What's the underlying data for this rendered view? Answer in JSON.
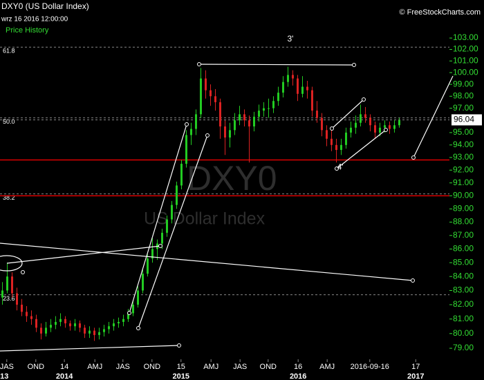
{
  "chart_data": {
    "type": "candlestick",
    "title": "DXY0 (US Dollar Index)",
    "subtitle": "wrz 16 2016 12:00:00",
    "legend_label": "Price History",
    "copyright": "© FreeStockCharts.com",
    "watermark": [
      "DXY0",
      "US Dollar Index"
    ],
    "annotations": [
      {
        "text": "3'",
        "x": 59.5,
        "y": 102.9
      },
      {
        "text": "4'",
        "x": 69.8,
        "y": 92.2
      }
    ],
    "log_scale": true,
    "up_color": "#22cc22",
    "down_color": "#dd2222",
    "ylim": [
      78.26,
      103.92
    ],
    "xlim": [
      -0.5,
      92.36
    ],
    "yticks": [
      {
        "value": 79,
        "label": "79.00"
      },
      {
        "value": 80,
        "label": "80.00"
      },
      {
        "value": 81,
        "label": "81.00"
      },
      {
        "value": 82,
        "label": "82.00"
      },
      {
        "value": 83,
        "label": "83.00"
      },
      {
        "value": 84,
        "label": "84.00"
      },
      {
        "value": 85,
        "label": "85.00"
      },
      {
        "value": 86,
        "label": "86.00"
      },
      {
        "value": 87,
        "label": "87.00"
      },
      {
        "value": 88,
        "label": "88.00"
      },
      {
        "value": 89,
        "label": "89.00"
      },
      {
        "value": 90,
        "label": "90.00"
      },
      {
        "value": 91,
        "label": "91.00"
      },
      {
        "value": 92,
        "label": "92.00"
      },
      {
        "value": 93,
        "label": "93.00"
      },
      {
        "value": 94,
        "label": "94.00"
      },
      {
        "value": 95,
        "label": "95.00"
      },
      {
        "value": 97,
        "label": "97.00"
      },
      {
        "value": 98,
        "label": "98.00"
      },
      {
        "value": 99,
        "label": "99.00"
      },
      {
        "value": 100,
        "label": "100.00"
      },
      {
        "value": 101,
        "label": "101.00"
      },
      {
        "value": 102,
        "label": "102.00"
      },
      {
        "value": 103,
        "label": "103.00"
      }
    ],
    "last_price": {
      "value": 96.04,
      "label": "96.04"
    },
    "xticks": [
      {
        "value": 0.9,
        "label": "JAS"
      },
      {
        "value": 6.9,
        "label": "OND"
      },
      {
        "value": 12.8,
        "label": "14"
      },
      {
        "value": 19.1,
        "label": "AMJ"
      },
      {
        "value": 24.9,
        "label": "JAS"
      },
      {
        "value": 30.9,
        "label": "OND"
      },
      {
        "value": 36.9,
        "label": "15"
      },
      {
        "value": 43.1,
        "label": "AMJ"
      },
      {
        "value": 49.1,
        "label": "JAS"
      },
      {
        "value": 54.9,
        "label": "OND"
      },
      {
        "value": 61.1,
        "label": "16"
      },
      {
        "value": 67.1,
        "label": "AMJ"
      },
      {
        "value": 75.9,
        "label": "2016-09-16"
      },
      {
        "value": 85.4,
        "label": "17"
      }
    ],
    "year_ticks": [
      {
        "value": 0.4,
        "label": "13"
      },
      {
        "value": 12.8,
        "label": "2014"
      },
      {
        "value": 36.9,
        "label": "2015"
      },
      {
        "value": 61.1,
        "label": "2016"
      },
      {
        "value": 85.4,
        "label": "2017"
      }
    ],
    "fib_levels": [
      {
        "level": "61.8",
        "price": 102.2
      },
      {
        "level": "50.0",
        "price": 96.2
      },
      {
        "level": "38.2",
        "price": 90.15
      },
      {
        "level": "23.6",
        "price": 82.7
      }
    ],
    "horizontal_lines": [
      92.8,
      90.0
    ],
    "line_color": "#dd0000",
    "candles": [
      [
        82.5,
        83.6,
        82.0,
        83.0
      ],
      [
        83.0,
        85.0,
        82.8,
        84.0
      ],
      [
        84.0,
        84.3,
        82.5,
        82.8
      ],
      [
        82.8,
        83.2,
        81.6,
        82.0
      ],
      [
        82.0,
        82.4,
        81.2,
        81.5
      ],
      [
        81.5,
        81.9,
        80.8,
        81.2
      ],
      [
        81.2,
        81.6,
        80.6,
        81.0
      ],
      [
        81.0,
        81.3,
        80.1,
        80.4
      ],
      [
        80.4,
        80.7,
        79.6,
        80.0
      ],
      [
        80.0,
        80.8,
        79.8,
        80.4
      ],
      [
        80.4,
        81.0,
        80.1,
        80.6
      ],
      [
        80.6,
        81.2,
        80.3,
        80.8
      ],
      [
        80.8,
        81.4,
        80.5,
        81.0
      ],
      [
        81.0,
        81.2,
        80.4,
        80.7
      ],
      [
        80.7,
        80.9,
        80.2,
        80.5
      ],
      [
        80.5,
        81.0,
        80.2,
        80.7
      ],
      [
        80.7,
        80.9,
        80.1,
        80.4
      ],
      [
        80.4,
        80.6,
        79.7,
        80.0
      ],
      [
        80.0,
        80.5,
        79.7,
        80.2
      ],
      [
        80.2,
        80.4,
        79.5,
        79.9
      ],
      [
        79.9,
        80.4,
        79.6,
        80.1
      ],
      [
        80.1,
        80.6,
        79.8,
        80.3
      ],
      [
        80.3,
        80.8,
        80.0,
        80.5
      ],
      [
        80.5,
        81.0,
        80.2,
        80.7
      ],
      [
        80.7,
        81.1,
        80.4,
        80.8
      ],
      [
        80.8,
        81.3,
        80.5,
        81.0
      ],
      [
        81.0,
        81.7,
        80.8,
        81.4
      ],
      [
        81.4,
        82.3,
        81.2,
        82.0
      ],
      [
        82.0,
        83.3,
        81.8,
        83.0
      ],
      [
        83.0,
        84.5,
        82.8,
        84.2
      ],
      [
        84.2,
        85.6,
        84.0,
        85.3
      ],
      [
        85.3,
        86.8,
        85.0,
        86.0
      ],
      [
        86.0,
        86.7,
        85.2,
        86.4
      ],
      [
        86.4,
        87.5,
        86.0,
        87.2
      ],
      [
        87.2,
        88.5,
        86.9,
        88.2
      ],
      [
        88.2,
        89.6,
        87.9,
        89.3
      ],
      [
        89.3,
        91.1,
        89.0,
        90.8
      ],
      [
        90.8,
        92.8,
        90.5,
        92.5
      ],
      [
        92.5,
        95.2,
        92.2,
        94.8
      ],
      [
        94.8,
        95.8,
        94.0,
        95.3
      ],
      [
        95.3,
        96.9,
        94.8,
        96.5
      ],
      [
        96.5,
        100.4,
        96.2,
        99.5
      ],
      [
        99.5,
        100.2,
        97.8,
        98.5
      ],
      [
        98.5,
        99.0,
        97.2,
        98.0
      ],
      [
        98.0,
        98.6,
        96.8,
        97.5
      ],
      [
        97.5,
        97.8,
        94.5,
        95.5
      ],
      [
        95.5,
        96.0,
        93.2,
        94.6
      ],
      [
        94.6,
        95.8,
        93.8,
        95.2
      ],
      [
        95.2,
        96.6,
        94.8,
        96.0
      ],
      [
        96.0,
        97.2,
        95.6,
        96.5
      ],
      [
        96.5,
        96.9,
        95.5,
        96.0
      ],
      [
        96.0,
        96.4,
        92.6,
        95.5
      ],
      [
        95.5,
        96.7,
        95.1,
        96.3
      ],
      [
        96.3,
        97.3,
        95.9,
        96.8
      ],
      [
        96.8,
        97.5,
        96.3,
        97.0
      ],
      [
        97.0,
        97.8,
        96.2,
        97.0
      ],
      [
        97.0,
        98.0,
        96.6,
        97.6
      ],
      [
        97.6,
        98.8,
        97.2,
        98.3
      ],
      [
        98.3,
        99.7,
        97.9,
        99.2
      ],
      [
        99.2,
        100.5,
        98.8,
        99.8
      ],
      [
        99.8,
        100.2,
        98.9,
        99.5
      ],
      [
        99.5,
        99.8,
        97.6,
        98.2
      ],
      [
        98.2,
        99.7,
        97.9,
        98.8
      ],
      [
        98.8,
        99.3,
        97.8,
        98.5
      ],
      [
        98.5,
        98.8,
        96.3,
        96.8
      ],
      [
        96.8,
        97.6,
        95.8,
        96.2
      ],
      [
        96.2,
        96.6,
        94.7,
        95.2
      ],
      [
        95.2,
        95.6,
        93.9,
        94.5
      ],
      [
        94.5,
        95.2,
        93.5,
        94.0
      ],
      [
        94.0,
        94.5,
        92.6,
        93.6
      ],
      [
        93.6,
        94.5,
        93.2,
        94.0
      ],
      [
        94.0,
        95.4,
        93.7,
        95.0
      ],
      [
        95.0,
        95.9,
        94.6,
        95.4
      ],
      [
        95.4,
        96.4,
        94.9,
        95.8
      ],
      [
        95.8,
        97.3,
        95.5,
        96.5
      ],
      [
        96.5,
        97.1,
        95.8,
        96.2
      ],
      [
        96.2,
        96.5,
        95.1,
        95.6
      ],
      [
        95.6,
        95.9,
        94.5,
        95.0
      ],
      [
        95.0,
        95.8,
        94.7,
        95.4
      ],
      [
        95.4,
        96.0,
        95.0,
        95.6
      ],
      [
        95.6,
        95.9,
        94.9,
        95.3
      ],
      [
        95.3,
        96.0,
        95.0,
        95.6
      ],
      [
        95.6,
        96.2,
        95.4,
        96.0
      ]
    ]
  }
}
